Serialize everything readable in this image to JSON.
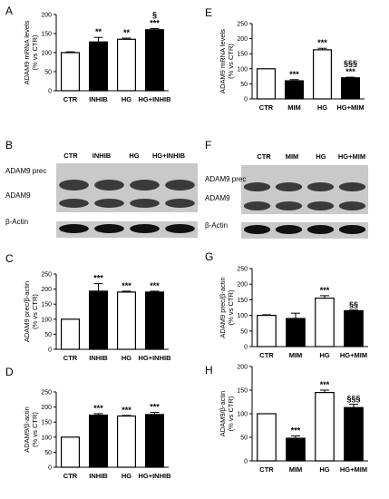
{
  "chart_data": [
    {
      "panel": "A",
      "type": "bar",
      "ylabel_lines": [
        "ADAM9 mRNA levels",
        "(% vs CTR)"
      ],
      "categories": [
        "CTR",
        "INHIB",
        "HG",
        "HG+INHIB"
      ],
      "values": [
        100,
        128,
        135,
        160
      ],
      "errors": [
        2,
        12,
        3,
        3
      ],
      "fills": [
        "white",
        "black",
        "white",
        "black"
      ],
      "sig": [
        "",
        "**",
        "**",
        "***"
      ],
      "sig2": [
        "",
        "",
        "",
        "§"
      ],
      "ylim": [
        0,
        200
      ],
      "yticks": [
        0,
        50,
        100,
        150,
        200
      ]
    },
    {
      "panel": "E",
      "type": "bar",
      "ylabel_lines": [
        "ADAM9 mRNA levels",
        "(% vs CTR)"
      ],
      "categories": [
        "CTR",
        "MIM",
        "HG",
        "HG+MIM"
      ],
      "values": [
        100,
        60,
        163,
        70
      ],
      "errors": [
        0,
        4,
        5,
        2
      ],
      "fills": [
        "white",
        "black",
        "white",
        "black"
      ],
      "sig": [
        "",
        "***",
        "***",
        "***"
      ],
      "sig2": [
        "",
        "",
        "",
        "§§§"
      ],
      "ylim": [
        0,
        250
      ],
      "yticks": [
        0,
        50,
        100,
        150,
        200,
        250
      ]
    },
    {
      "panel": "C",
      "type": "bar",
      "ylabel_lines": [
        "ADAM9 prec/β-actin",
        "(% vs CTR)"
      ],
      "categories": [
        "CTR",
        "INHIB",
        "HG",
        "HG+INHIB"
      ],
      "values": [
        100,
        193,
        190,
        190
      ],
      "errors": [
        0,
        25,
        3,
        3
      ],
      "fills": [
        "white",
        "black",
        "white",
        "black"
      ],
      "sig": [
        "",
        "***",
        "***",
        "***"
      ],
      "sig2": [
        "",
        "",
        "",
        ""
      ],
      "ylim": [
        0,
        250
      ],
      "yticks": [
        0,
        50,
        100,
        150,
        200,
        250
      ]
    },
    {
      "panel": "G",
      "type": "bar",
      "ylabel_lines": [
        "ADAM9 prec/β-actin",
        "(% vs CTR)"
      ],
      "categories": [
        "CTR",
        "MIM",
        "HG",
        "HG+MIM"
      ],
      "values": [
        100,
        90,
        155,
        115
      ],
      "errors": [
        2,
        17,
        8,
        2
      ],
      "fills": [
        "white",
        "black",
        "white",
        "black"
      ],
      "sig": [
        "",
        "",
        "***",
        ""
      ],
      "sig2": [
        "",
        "",
        "",
        "§§"
      ],
      "ylim": [
        0,
        250
      ],
      "yticks": [
        0,
        50,
        100,
        150,
        200,
        250
      ]
    },
    {
      "panel": "D",
      "type": "bar",
      "ylabel_lines": [
        "ADAM9/β-actin",
        "(% vs CTR)"
      ],
      "categories": [
        "CTR",
        "INHIB",
        "HG",
        "HG+INHIB"
      ],
      "values": [
        100,
        173,
        170,
        175
      ],
      "errors": [
        0,
        5,
        2,
        7
      ],
      "fills": [
        "white",
        "black",
        "white",
        "black"
      ],
      "sig": [
        "",
        "***",
        "***",
        "***"
      ],
      "sig2": [
        "",
        "",
        "",
        ""
      ],
      "ylim": [
        0,
        250
      ],
      "yticks": [
        0,
        50,
        100,
        150,
        200,
        250
      ]
    },
    {
      "panel": "H",
      "type": "bar",
      "ylabel_lines": [
        "ADAM9/β-actin",
        "(% vs CTR)"
      ],
      "categories": [
        "CTR",
        "MIM",
        "HG",
        "HG+MIM"
      ],
      "values": [
        100,
        48,
        145,
        113
      ],
      "errors": [
        0,
        5,
        5,
        7
      ],
      "fills": [
        "white",
        "black",
        "white",
        "black"
      ],
      "sig": [
        "",
        "***",
        "***",
        ""
      ],
      "sig2": [
        "",
        "",
        "",
        "§§§"
      ],
      "ylim": [
        0,
        200
      ],
      "yticks": [
        0,
        50,
        100,
        150,
        200
      ]
    }
  ],
  "blots": [
    {
      "panel": "B",
      "lanes": [
        "CTR",
        "INHIB",
        "HG",
        "HG+INHIB"
      ],
      "rows": [
        "ADAM9 prec",
        "ADAM9",
        "β-Actin"
      ]
    },
    {
      "panel": "F",
      "lanes": [
        "CTR",
        "MIM",
        "HG",
        "HG+MIM"
      ],
      "rows": [
        "ADAM9 prec",
        "ADAM9",
        "β-Actin"
      ]
    }
  ]
}
